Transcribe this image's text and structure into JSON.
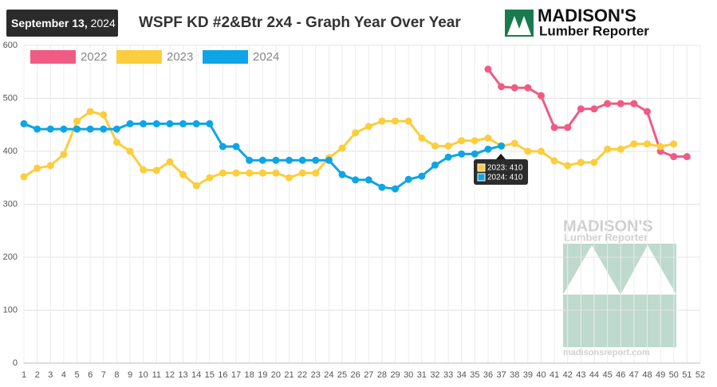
{
  "header": {
    "date_bold": "September 13,",
    "date_year": "2024",
    "logo_name": "MADISON'S",
    "logo_tagline": "Lumber Reporter"
  },
  "chart_data": {
    "type": "line",
    "title": "WSPF KD #2&Btr 2x4 - Graph Year Over Year",
    "x": [
      1,
      2,
      3,
      4,
      5,
      6,
      7,
      8,
      9,
      10,
      11,
      12,
      13,
      14,
      15,
      16,
      17,
      18,
      19,
      20,
      21,
      22,
      23,
      24,
      25,
      26,
      27,
      28,
      29,
      30,
      31,
      32,
      33,
      34,
      35,
      36,
      37,
      38,
      39,
      40,
      41,
      42,
      43,
      44,
      45,
      46,
      47,
      48,
      49,
      50,
      51,
      52
    ],
    "xlim": [
      1,
      52
    ],
    "xticks": [
      1,
      2,
      3,
      4,
      5,
      6,
      7,
      8,
      9,
      10,
      11,
      12,
      13,
      14,
      15,
      16,
      17,
      18,
      19,
      20,
      21,
      22,
      23,
      24,
      25,
      26,
      27,
      28,
      29,
      30,
      31,
      32,
      33,
      34,
      35,
      36,
      37,
      38,
      39,
      40,
      41,
      42,
      43,
      44,
      45,
      46,
      47,
      48,
      49,
      50,
      51,
      52
    ],
    "ylim": [
      0,
      600
    ],
    "yticks": [
      0,
      100,
      200,
      300,
      400,
      500,
      600
    ],
    "grid": true,
    "legend": "top-left",
    "series": [
      {
        "name": "2022",
        "color": "#ef5b84",
        "values": [
          null,
          null,
          null,
          null,
          null,
          null,
          null,
          null,
          null,
          null,
          null,
          null,
          null,
          null,
          null,
          null,
          null,
          null,
          null,
          null,
          null,
          null,
          null,
          null,
          null,
          null,
          null,
          null,
          null,
          null,
          null,
          null,
          null,
          null,
          null,
          555,
          522,
          520,
          520,
          505,
          445,
          445,
          480,
          480,
          490,
          490,
          490,
          475,
          400,
          390,
          390,
          null
        ]
      },
      {
        "name": "2023",
        "color": "#fccd3c",
        "values": [
          352,
          368,
          373,
          394,
          457,
          475,
          469,
          417,
          400,
          365,
          364,
          380,
          356,
          335,
          350,
          359,
          359,
          359,
          359,
          359,
          350,
          359,
          359,
          388,
          406,
          435,
          447,
          457,
          457,
          457,
          425,
          410,
          410,
          420,
          420,
          425,
          410,
          415,
          400,
          400,
          382,
          373,
          379,
          379,
          404,
          404,
          414,
          414,
          409,
          414,
          null,
          null
        ]
      },
      {
        "name": "2024",
        "color": "#0ea5e6",
        "values": [
          452,
          442,
          442,
          442,
          442,
          442,
          442,
          442,
          452,
          452,
          452,
          452,
          452,
          452,
          452,
          409,
          409,
          383,
          383,
          383,
          383,
          383,
          383,
          383,
          356,
          346,
          346,
          332,
          329,
          347,
          353,
          374,
          389,
          395,
          395,
          404,
          410,
          null,
          null,
          null,
          null,
          null,
          null,
          null,
          null,
          null,
          null,
          null,
          null,
          null,
          null,
          null
        ]
      }
    ],
    "tooltip": {
      "items": [
        "2023: 410",
        "2024: 410"
      ]
    },
    "watermark": {
      "name": "MADISON'S",
      "tagline": "Lumber Reporter",
      "url": "madisonsreport.com"
    }
  }
}
